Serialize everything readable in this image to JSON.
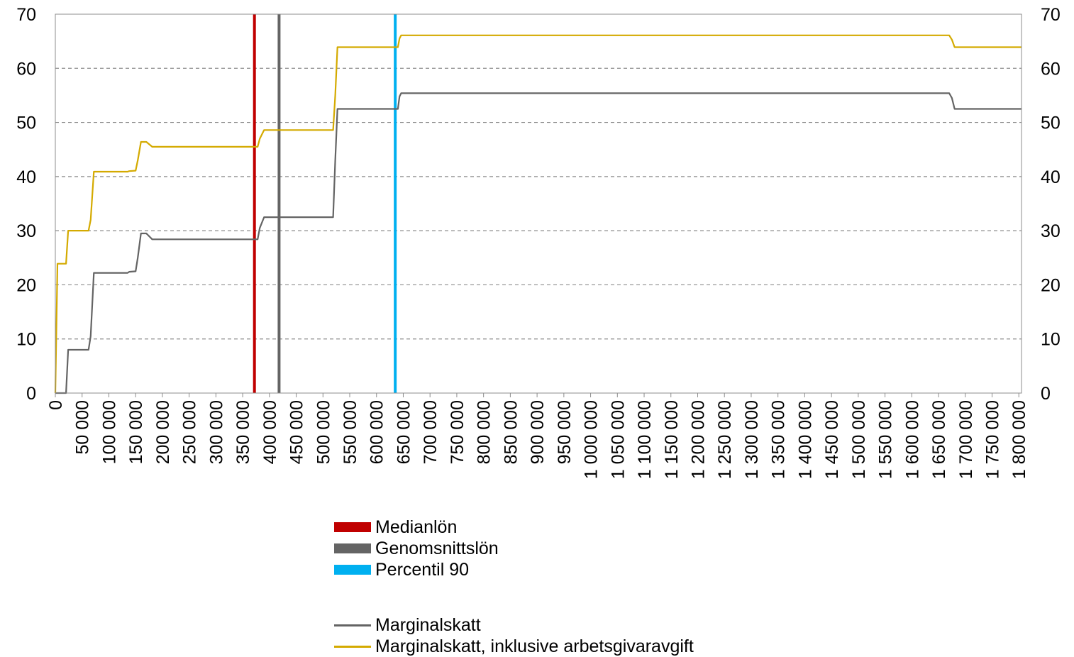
{
  "chart_data": {
    "type": "line",
    "title": "",
    "xlabel": "",
    "ylabel": "",
    "xlim": [
      0,
      1805000
    ],
    "ylim": [
      0,
      70
    ],
    "y_ticks": [
      0,
      10,
      20,
      30,
      40,
      50,
      60,
      70
    ],
    "y_tick_labels": [
      "0",
      "10",
      "20",
      "30",
      "40",
      "50",
      "60",
      "70"
    ],
    "x_ticks": [
      0,
      50000,
      100000,
      150000,
      200000,
      250000,
      300000,
      350000,
      400000,
      450000,
      500000,
      550000,
      600000,
      650000,
      700000,
      750000,
      800000,
      850000,
      900000,
      950000,
      1000000,
      1050000,
      1100000,
      1150000,
      1200000,
      1250000,
      1300000,
      1350000,
      1400000,
      1450000,
      1500000,
      1550000,
      1600000,
      1650000,
      1700000,
      1750000,
      1800000
    ],
    "x_tick_labels": [
      "0",
      "50 000",
      "100 000",
      "150 000",
      "200 000",
      "250 000",
      "300 000",
      "350 000",
      "400 000",
      "450 000",
      "500 000",
      "550 000",
      "600 000",
      "650 000",
      "700 000",
      "750 000",
      "800 000",
      "850 000",
      "900 000",
      "950 000",
      "1 000 000",
      "1 050 000",
      "1 100 000",
      "1 150 000",
      "1 200 000",
      "1 250 000",
      "1 300 000",
      "1 350 000",
      "1 400 000",
      "1 450 000",
      "1 500 000",
      "1 550 000",
      "1 600 000",
      "1 650 000",
      "1 700 000",
      "1 750 000",
      "1 800 000"
    ],
    "grid": "horizontal dashed",
    "right_axis": true,
    "vertical_markers": [
      {
        "name": "Medianlön",
        "x": 372000,
        "color": "#c00000"
      },
      {
        "name": "Genomsnittslön",
        "x": 418000,
        "color": "#646464"
      },
      {
        "name": "Percentil 90",
        "x": 635000,
        "color": "#00b0f0"
      }
    ],
    "series": [
      {
        "name": "Marginalskatt",
        "color": "#646464",
        "x": [
          0,
          4000,
          20000,
          24000,
          62000,
          66000,
          72000,
          135000,
          138000,
          150000,
          154000,
          160000,
          170000,
          181000,
          184000,
          220000,
          300000,
          378000,
          382000,
          390000,
          400000,
          450000,
          519000,
          523000,
          527000,
          530000,
          600000,
          640000,
          643000,
          646000,
          652000,
          700000,
          800000,
          1000000,
          1200000,
          1400000,
          1600000,
          1670000,
          1675000,
          1680000,
          1690000,
          1800000,
          1805000
        ],
        "y": [
          0,
          0,
          0,
          8,
          8,
          10.5,
          22.2,
          22.2,
          22.4,
          22.5,
          25,
          29.5,
          29.5,
          28.4,
          28.4,
          28.4,
          28.4,
          28.4,
          30.5,
          32.5,
          32.5,
          32.5,
          32.5,
          43,
          52.5,
          52.5,
          52.5,
          52.5,
          54.8,
          55.4,
          55.4,
          55.4,
          55.4,
          55.4,
          55.4,
          55.4,
          55.4,
          55.4,
          54.5,
          52.5,
          52.5,
          52.5,
          52.5
        ]
      },
      {
        "name": "Marginalskatt, inklusive arbetsgivaravgift",
        "color": "#d4aa00",
        "x": [
          0,
          4000,
          7000,
          20000,
          24000,
          62000,
          66000,
          72000,
          135000,
          138000,
          150000,
          154000,
          160000,
          170000,
          181000,
          184000,
          220000,
          300000,
          378000,
          382000,
          390000,
          400000,
          450000,
          519000,
          523000,
          527000,
          530000,
          600000,
          640000,
          643000,
          646000,
          652000,
          700000,
          800000,
          1000000,
          1200000,
          1400000,
          1600000,
          1670000,
          1675000,
          1680000,
          1690000,
          1800000,
          1805000
        ],
        "y": [
          0,
          23.9,
          23.9,
          23.9,
          30,
          30,
          32,
          40.9,
          40.9,
          41,
          41.1,
          43,
          46.4,
          46.4,
          45.5,
          45.5,
          45.5,
          45.5,
          45.5,
          47,
          48.6,
          48.6,
          48.6,
          48.6,
          55,
          63.9,
          63.9,
          63.9,
          63.9,
          65.5,
          66.1,
          66.1,
          66.1,
          66.1,
          66.1,
          66.1,
          66.1,
          66.1,
          66.1,
          65.3,
          63.9,
          63.9,
          63.9,
          63.9
        ]
      }
    ]
  },
  "legend": {
    "bars": [
      {
        "label": "Medianlön",
        "color": "#c00000"
      },
      {
        "label": "Genomsnittslön",
        "color": "#646464"
      },
      {
        "label": "Percentil 90",
        "color": "#00b0f0"
      }
    ],
    "lines": [
      {
        "label": "Marginalskatt",
        "color": "#646464"
      },
      {
        "label": "Marginalskatt, inklusive arbetsgivaravgift",
        "color": "#d4aa00"
      }
    ]
  }
}
